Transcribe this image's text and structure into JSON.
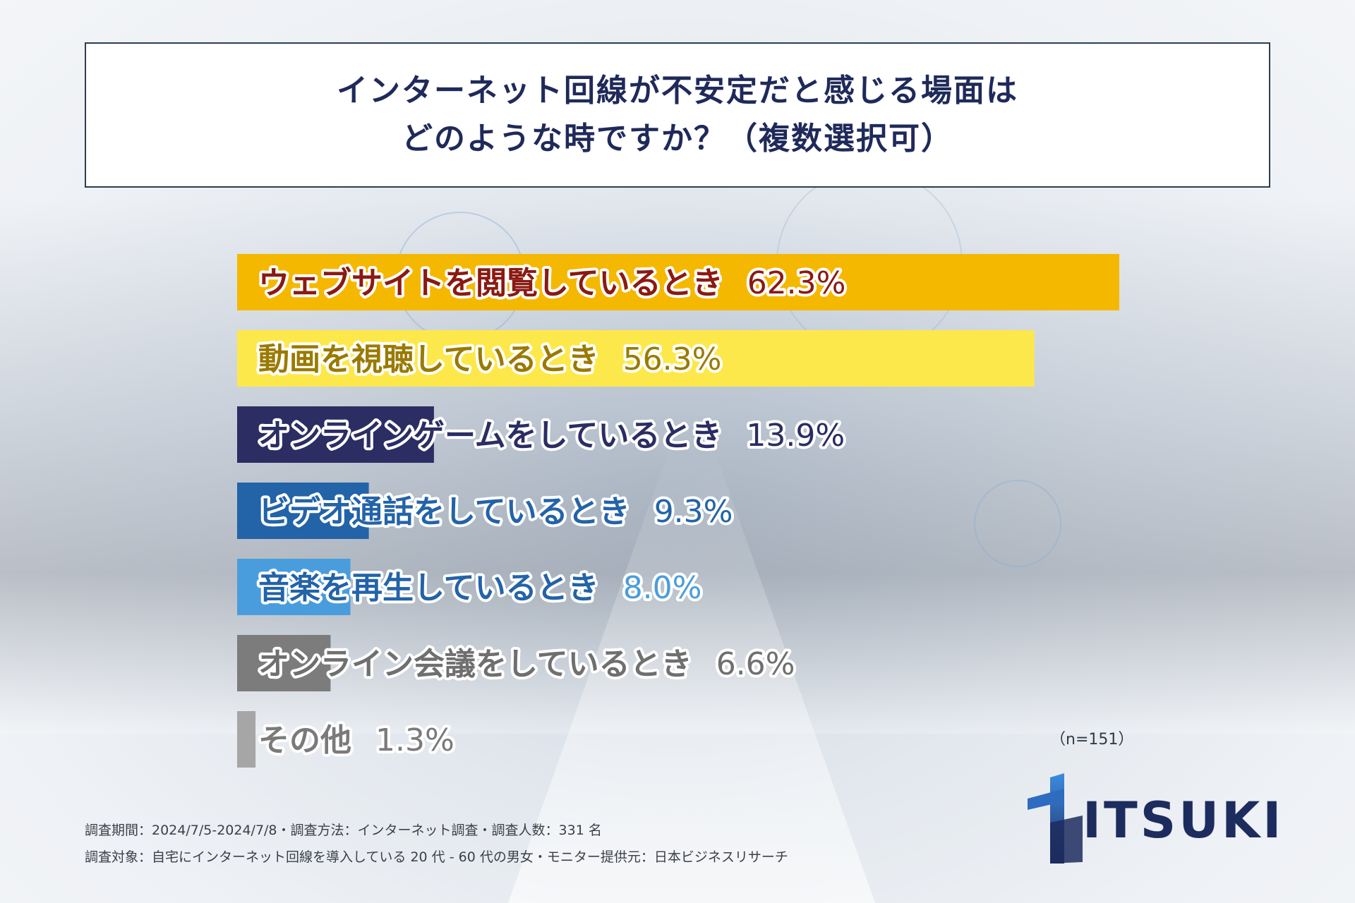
{
  "header": {
    "title_line1": "インターネット回線が不安定だと感じる場面は",
    "title_line2": "どのような時ですか？（複数選択可）"
  },
  "chart_data": {
    "type": "bar",
    "orientation": "horizontal",
    "categories": [
      "ウェブサイトを閲覧しているとき",
      "動画を視聴しているとき",
      "オンラインゲームをしているとき",
      "ビデオ通話をしているとき",
      "音楽を再生しているとき",
      "オンライン会議をしているとき",
      "その他"
    ],
    "values": [
      62.3,
      56.3,
      13.9,
      9.3,
      8.0,
      6.6,
      1.3
    ],
    "value_labels": [
      "62.3%",
      "56.3%",
      "13.9%",
      "9.3%",
      "8.0%",
      "6.6%",
      "1.3%"
    ],
    "bar_colors": [
      "#f5b800",
      "#fde84c",
      "#2b2d63",
      "#2363a8",
      "#4a9ddc",
      "#7c7c7c",
      "#a6a6a6"
    ],
    "label_colors": [
      "#8a1a12",
      "#9a7a00",
      "#2b2d63",
      "#2363a8",
      "#2363a8",
      "#6f6f6f",
      "#7a7a7a"
    ],
    "value_colors": [
      "#8a1a12",
      "#9a7a00",
      "#2b2d63",
      "#2363a8",
      "#4a9ddc",
      "#6f6f6f",
      "#7a7a7a"
    ],
    "xlim": [
      0,
      62.3
    ],
    "grid": false
  },
  "sample_size": "（n=151）",
  "footnotes": {
    "line1": "調査期間：2024/7/5-2024/7/8・調査方法：インターネット調査・調査人数：331 名",
    "line2": "調査対象：自宅にインターネット回線を導入している 20 代 - 60 代の男女・モニター提供元：日本ビジネスリサーチ"
  },
  "logo": {
    "text": "ITSUKI",
    "color": "#1d2c5e"
  }
}
